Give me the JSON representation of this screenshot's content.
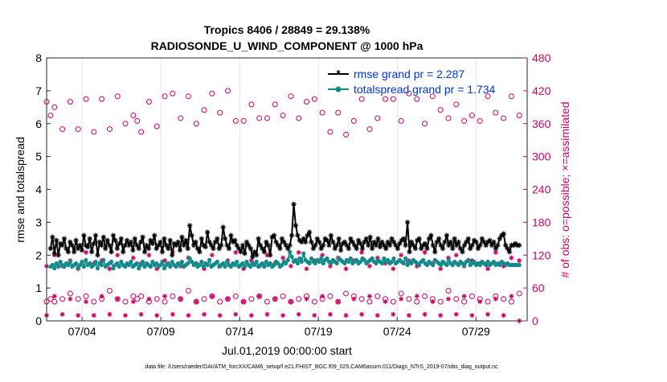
{
  "chart_data": {
    "type": "line",
    "title": "Tropics 8406 / 28849 = 29.138%",
    "subtitle": "RADIOSONDE_U_WIND_COMPONENT @ 1000 hPa",
    "xlabel": "Jul.01,2019 00:00:00 start",
    "ylabel": "rmse and totalspread",
    "y2label": "# of obs: o=possible; ×=assimilated",
    "footnote": "data file: /Users/raeder/DAI/ATM_forcXX/CAM6_setup/f.e21.FHIST_BGC.f09_025.CAM6assim.011/Diags_NTrS_2019-07/obs_diag_output.nc",
    "x_unit": "days since Jul.01,2019 00:00 (6-hourly)",
    "xlim": [
      0.75,
      31.25
    ],
    "ylim": [
      0,
      8
    ],
    "y2lim": [
      0,
      480
    ],
    "x_ticks": [
      {
        "x": 3,
        "label": "07/04"
      },
      {
        "x": 8,
        "label": "07/09"
      },
      {
        "x": 13,
        "label": "07/14"
      },
      {
        "x": 18,
        "label": "07/19"
      },
      {
        "x": 23,
        "label": "07/24"
      },
      {
        "x": 28,
        "label": "07/29"
      }
    ],
    "y_ticks": [
      "0",
      "1",
      "2",
      "3",
      "4",
      "5",
      "6",
      "7",
      "8"
    ],
    "y2_ticks": [
      "0",
      "60",
      "120",
      "180",
      "240",
      "300",
      "360",
      "420",
      "480"
    ],
    "legend_position": "top-right",
    "colors": {
      "rmse": "#000000",
      "totalspread": "#138a8a",
      "obs": "#cc0066",
      "legend_text": "#0033dd",
      "axis_right": "#cc0066"
    },
    "series": [
      {
        "name": "rmse grand pr = 2.287",
        "axis": "left",
        "marker": "asterisk",
        "values": [
          2.2,
          2.55,
          2.05,
          2.45,
          2.0,
          2.35,
          2.3,
          2.5,
          2.2,
          2.1,
          2.4,
          2.3,
          2.1,
          2.45,
          2.2,
          2.3,
          2.15,
          2.6,
          2.3,
          2.25,
          2.5,
          2.1,
          2.35,
          2.6,
          2.0,
          2.4,
          2.3,
          2.55,
          2.2,
          2.45,
          2.3,
          2.1,
          2.6,
          2.45,
          2.2,
          2.35,
          2.5,
          2.1,
          2.3,
          2.45,
          2.3,
          2.4,
          2.15,
          2.5,
          2.3,
          2.2,
          2.4,
          2.55,
          2.1,
          2.3,
          2.2,
          2.45,
          2.35,
          2.6,
          2.2,
          2.3,
          2.4,
          2.1,
          2.5,
          2.3,
          2.2,
          2.45,
          2.0,
          2.35,
          2.3,
          2.4,
          2.15,
          2.55,
          2.3,
          2.45,
          2.2,
          2.9,
          2.6,
          2.3,
          2.4,
          2.2,
          2.1,
          2.5,
          2.3,
          2.25,
          2.7,
          2.4,
          2.3,
          2.2,
          2.4,
          2.5,
          2.2,
          2.3,
          2.85,
          2.5,
          2.3,
          2.2,
          2.6,
          2.4,
          2.45,
          2.3,
          2.2,
          2.1,
          2.3,
          2.05,
          2.4,
          2.3,
          2.2,
          1.95,
          2.1,
          2.0,
          2.5,
          2.3,
          2.2,
          2.1,
          2.4,
          2.3,
          2.0,
          2.55,
          2.6,
          2.4,
          2.3,
          2.2,
          2.5,
          2.4,
          2.3,
          2.2,
          2.3,
          2.6,
          3.55,
          2.9,
          2.6,
          2.45,
          2.4,
          2.5,
          2.4,
          2.6,
          2.7,
          2.4,
          2.2,
          2.3,
          2.5,
          2.4,
          2.2,
          2.3,
          2.5,
          2.45,
          2.3,
          2.6,
          2.4,
          2.2,
          2.3,
          2.5,
          2.15,
          2.35,
          2.4,
          2.3,
          2.2,
          2.5,
          2.4,
          2.3,
          2.2,
          2.45,
          2.35,
          2.2,
          2.4,
          2.5,
          2.3,
          2.55,
          2.2,
          2.4,
          2.3,
          2.5,
          2.25,
          2.4,
          2.3,
          2.2,
          2.4,
          2.3,
          2.5,
          2.4,
          2.3,
          2.2,
          2.35,
          2.45,
          2.5,
          2.3,
          3.0,
          2.1,
          2.4,
          2.3,
          2.2,
          2.45,
          2.5,
          2.2,
          2.3,
          2.35,
          2.2,
          2.5,
          2.6,
          2.3,
          2.1,
          2.4,
          2.5,
          2.3,
          2.2,
          2.4,
          2.6,
          2.3,
          2.4,
          2.2,
          2.5,
          2.3,
          2.4,
          2.2,
          2.1,
          2.3,
          2.4,
          2.5,
          2.2,
          2.3,
          2.45,
          2.4,
          2.2,
          2.3,
          2.5,
          2.4,
          2.3,
          2.4,
          2.45,
          2.3,
          2.4,
          2.2,
          2.3,
          2.5,
          2.6,
          2.65,
          2.3,
          2.2,
          2.1,
          2.3,
          2.3,
          2.35,
          2.3,
          2.3
        ]
      },
      {
        "name": "totalspread grand pr = 1.734",
        "axis": "left",
        "marker": "dot",
        "values": [
          1.65,
          1.7,
          1.6,
          1.75,
          1.65,
          1.8,
          1.7,
          1.65,
          1.75,
          1.7,
          1.8,
          1.65,
          1.7,
          1.75,
          1.6,
          1.7,
          1.8,
          1.65,
          1.85,
          1.7,
          1.75,
          1.65,
          1.7,
          1.8,
          1.6,
          1.75,
          1.7,
          1.85,
          1.65,
          1.7,
          1.75,
          1.8,
          1.6,
          1.7,
          1.75,
          1.65,
          1.8,
          1.7,
          1.65,
          1.75,
          1.7,
          1.8,
          1.65,
          1.7,
          1.75,
          1.6,
          1.7,
          1.8,
          1.65,
          1.75,
          1.7,
          1.65,
          1.8,
          1.7,
          1.75,
          1.65,
          1.7,
          1.8,
          1.6,
          1.7,
          1.75,
          1.65,
          1.8,
          1.7,
          1.65,
          1.75,
          1.7,
          1.8,
          1.65,
          1.7,
          1.75,
          1.9,
          1.8,
          1.7,
          1.75,
          1.65,
          1.7,
          1.8,
          1.65,
          1.75,
          1.7,
          1.85,
          1.65,
          1.7,
          1.75,
          1.8,
          1.65,
          1.7,
          1.75,
          1.65,
          1.8,
          1.7,
          1.65,
          1.75,
          1.7,
          1.8,
          1.65,
          1.7,
          1.75,
          1.65,
          1.8,
          1.7,
          1.65,
          1.75,
          1.7,
          1.8,
          1.65,
          1.7,
          1.75,
          1.65,
          1.8,
          1.7,
          1.75,
          1.65,
          1.7,
          1.8,
          1.75,
          1.65,
          1.7,
          1.8,
          1.75,
          1.85,
          2.1,
          1.95,
          1.8,
          1.85,
          1.75,
          1.9,
          1.8,
          2.05,
          1.85,
          1.8,
          1.75,
          1.9,
          1.8,
          1.75,
          1.85,
          1.8,
          1.9,
          1.75,
          1.85,
          1.9,
          1.8,
          1.75,
          1.85,
          1.8,
          1.75,
          1.9,
          1.85,
          1.8,
          1.75,
          1.85,
          1.8,
          1.9,
          1.75,
          1.8,
          1.85,
          1.75,
          1.8,
          1.9,
          1.85,
          1.75,
          1.8,
          1.85,
          1.9,
          1.8,
          1.75,
          1.85,
          1.8,
          1.75,
          1.9,
          1.8,
          1.85,
          1.75,
          1.8,
          1.9,
          1.75,
          1.8,
          1.85,
          1.8,
          1.75,
          1.9,
          1.7,
          1.8,
          1.75,
          1.85,
          1.8,
          1.75,
          1.7,
          1.8,
          1.85,
          1.75,
          1.7,
          1.8,
          1.75,
          1.7,
          1.85,
          1.8,
          1.75,
          1.7,
          1.8,
          1.75,
          1.7,
          1.85,
          1.75,
          1.7,
          1.8,
          1.75,
          1.7,
          1.8,
          1.75,
          1.7,
          1.8,
          1.85,
          1.7,
          1.75,
          1.8,
          1.7,
          1.75,
          1.7,
          1.8,
          1.75,
          1.7,
          1.8,
          1.7,
          1.75,
          1.8,
          1.7,
          1.75,
          1.7,
          1.8,
          1.75,
          1.7,
          1.75,
          1.7,
          1.7,
          1.7,
          1.7,
          1.7,
          1.7
        ]
      },
      {
        "name": "obs possible (o)",
        "axis": "right",
        "marker": "circle",
        "x": [
          0.75,
          1.0,
          1.25,
          1.75,
          2.25,
          2.75,
          3.25,
          3.75,
          4.25,
          4.75,
          5.25,
          5.75,
          6.25,
          6.5,
          6.75,
          7.25,
          7.75,
          8.25,
          8.75,
          9.25,
          9.75,
          10.25,
          10.75,
          11.25,
          11.75,
          12.25,
          12.75,
          13.25,
          13.75,
          14.25,
          14.75,
          15.25,
          15.75,
          16.25,
          16.75,
          17.25,
          17.75,
          18.25,
          18.75,
          19.25,
          19.75,
          20.25,
          20.75,
          21.25,
          21.75,
          22.25,
          22.75,
          23.25,
          23.75,
          24.25,
          24.75,
          25.25,
          25.75,
          26.25,
          26.75,
          27.25,
          27.75,
          28.25,
          28.75,
          29.25,
          29.75,
          30.25,
          30.75
        ],
        "values": [
          400,
          375,
          390,
          350,
          400,
          350,
          405,
          345,
          405,
          350,
          410,
          360,
          375,
          365,
          345,
          400,
          355,
          410,
          415,
          370,
          410,
          360,
          385,
          415,
          380,
          420,
          365,
          365,
          395,
          370,
          370,
          395,
          375,
          410,
          370,
          400,
          405,
          380,
          345,
          380,
          340,
          365,
          405,
          350,
          370,
          405,
          405,
          365,
          415,
          405,
          360,
          410,
          385,
          370,
          395,
          365,
          375,
          365,
          410,
          380,
          370,
          410,
          375
        ],
        "values_low": [
          35,
          40,
          35,
          40,
          50,
          40,
          45,
          35,
          40,
          55,
          40,
          35,
          45,
          40,
          45,
          35,
          40,
          35,
          45,
          40,
          55,
          35,
          40,
          45,
          35,
          40,
          45,
          35,
          40,
          45,
          35,
          40,
          45,
          35,
          40,
          45,
          35,
          40,
          45,
          35,
          50,
          45,
          40,
          35,
          45,
          40,
          35,
          50,
          40,
          35,
          45,
          40,
          35,
          55,
          40,
          35,
          45,
          40,
          35,
          45,
          40,
          35,
          50
        ]
      },
      {
        "name": "obs assimilated (×)",
        "axis": "right",
        "marker": "asterisk",
        "x": [
          0.75,
          1.25,
          1.75,
          2.25,
          2.75,
          3.25,
          3.75,
          4.25,
          4.75,
          5.25,
          5.75,
          6.25,
          6.75,
          7.25,
          7.75,
          8.25,
          8.75,
          9.25,
          9.75,
          10.25,
          10.75,
          11.25,
          11.75,
          12.25,
          12.75,
          13.25,
          13.75,
          14.25,
          14.75,
          15.25,
          15.75,
          16.25,
          16.75,
          17.25,
          17.75,
          18.25,
          18.75,
          19.25,
          19.75,
          20.25,
          20.75,
          21.25,
          21.75,
          22.25,
          22.75,
          23.25,
          23.75,
          24.25,
          24.75,
          25.25,
          25.75,
          26.25,
          26.75,
          27.25,
          27.75,
          28.25,
          28.75,
          29.25,
          29.75,
          30.25,
          30.75
        ],
        "values": [
          100,
          120,
          100,
          110,
          95,
          125,
          105,
          110,
          95,
          120,
          100,
          115,
          105,
          120,
          95,
          110,
          125,
          100,
          115,
          105,
          95,
          120,
          100,
          110,
          125,
          95,
          110,
          100,
          120,
          105,
          115,
          100,
          125,
          95,
          110,
          120,
          100,
          115,
          95,
          110,
          125,
          100,
          115,
          105,
          95,
          120,
          110,
          100,
          125,
          105,
          95,
          115,
          120,
          100,
          110,
          105,
          95,
          125,
          100,
          115,
          110
        ],
        "values_low": [
          10,
          45,
          12,
          40,
          10,
          35,
          10,
          45,
          12,
          40,
          10,
          35,
          12,
          40,
          10,
          45,
          12,
          40,
          10,
          35,
          12,
          45,
          10,
          40,
          12,
          35,
          10,
          45,
          12,
          40,
          10,
          35,
          12,
          40,
          10,
          45,
          12,
          35,
          10,
          40,
          12,
          45,
          10,
          35,
          12,
          40,
          10,
          45,
          12,
          35,
          10,
          40,
          12,
          45,
          10,
          35,
          12,
          40,
          10,
          45,
          0
        ]
      }
    ]
  }
}
